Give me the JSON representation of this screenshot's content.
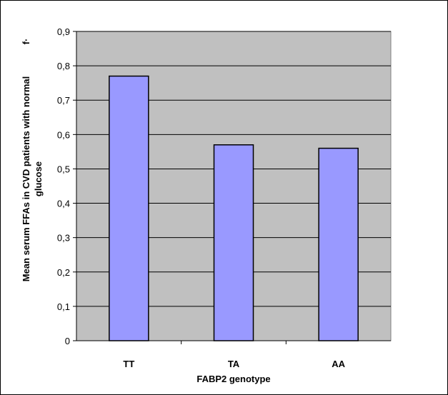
{
  "chart_data": {
    "type": "bar",
    "categories": [
      "TT",
      "TA",
      "AA"
    ],
    "values": [
      0.77,
      0.57,
      0.56
    ],
    "xlabel": "FABP2 genotype",
    "ylabel_lines": [
      "Mean serum FFAs in CVD patients with normal",
      "glucose"
    ],
    "ylabel_unit_fragment": "f·",
    "ylim": [
      0,
      0.9
    ],
    "yticks": [
      "0",
      "0,1",
      "0,2",
      "0,3",
      "0,4",
      "0,5",
      "0,6",
      "0,7",
      "0,8",
      "0,9"
    ],
    "grid": true,
    "legend": "none",
    "colors": {
      "bar": "#9999ff",
      "plot_area": "#c0c0c0",
      "gridline": "#000000"
    }
  }
}
